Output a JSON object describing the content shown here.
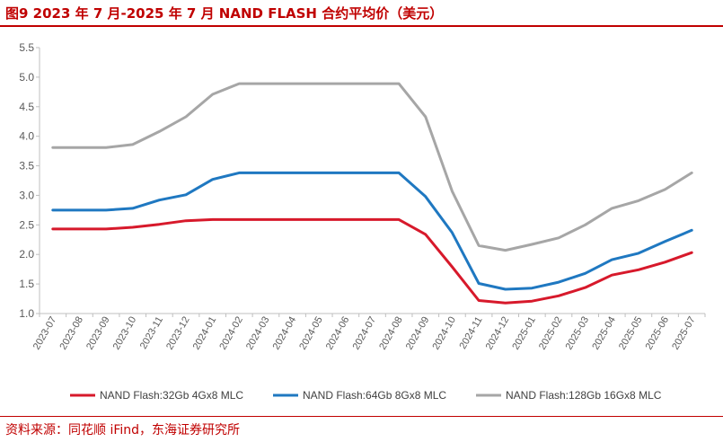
{
  "title": "图9  2023 年 7 月-2025 年 7 月 NAND FLASH 合约平均价（美元）",
  "source": "资料来源：同花顺 iFind，东海证券研究所",
  "colors": {
    "accent": "#c00000",
    "axis": "#bfbfbf",
    "tick_text": "#595959"
  },
  "chart_data": {
    "type": "line",
    "title": "2023 年 7 月-2025 年 7 月 NAND FLASH 合约平均价（美元）",
    "xlabel": "",
    "ylabel": "",
    "ylim": [
      1.0,
      5.5
    ],
    "yticks": [
      "1.0",
      "1.5",
      "2.0",
      "2.5",
      "3.0",
      "3.5",
      "4.0",
      "4.5",
      "5.0",
      "5.5"
    ],
    "grid": false,
    "legend_position": "bottom",
    "categories": [
      "2023-07",
      "2023-08",
      "2023-09",
      "2023-10",
      "2023-11",
      "2023-12",
      "2024-01",
      "2024-02",
      "2024-03",
      "2024-04",
      "2024-05",
      "2024-06",
      "2024-07",
      "2024-08",
      "2024-09",
      "2024-10",
      "2024-11",
      "2024-12",
      "2025-01",
      "2025-02",
      "2025-03",
      "2025-04",
      "2025-05",
      "2025-06",
      "2025-07"
    ],
    "series": [
      {
        "name": "NAND Flash:32Gb 4Gx8 MLC",
        "color": "#d7192b",
        "values": [
          2.43,
          2.43,
          2.43,
          2.46,
          2.51,
          2.57,
          2.59,
          2.59,
          2.59,
          2.59,
          2.59,
          2.59,
          2.59,
          2.59,
          2.34,
          1.79,
          1.22,
          1.18,
          1.21,
          1.3,
          1.44,
          1.65,
          1.74,
          1.87,
          2.03
        ]
      },
      {
        "name": "NAND Flash:64Gb 8Gx8 MLC",
        "color": "#1f78c1",
        "values": [
          2.75,
          2.75,
          2.75,
          2.78,
          2.92,
          3.01,
          3.27,
          3.38,
          3.38,
          3.38,
          3.38,
          3.38,
          3.38,
          3.38,
          2.98,
          2.37,
          1.51,
          1.41,
          1.43,
          1.53,
          1.68,
          1.91,
          2.02,
          2.22,
          2.41
        ]
      },
      {
        "name": "NAND Flash:128Gb 16Gx8 MLC",
        "color": "#a6a6a6",
        "values": [
          3.81,
          3.81,
          3.81,
          3.86,
          4.08,
          4.33,
          4.71,
          4.89,
          4.89,
          4.89,
          4.89,
          4.89,
          4.89,
          4.89,
          4.33,
          3.07,
          2.15,
          2.07,
          2.17,
          2.28,
          2.5,
          2.78,
          2.91,
          3.1,
          3.38
        ]
      }
    ]
  }
}
